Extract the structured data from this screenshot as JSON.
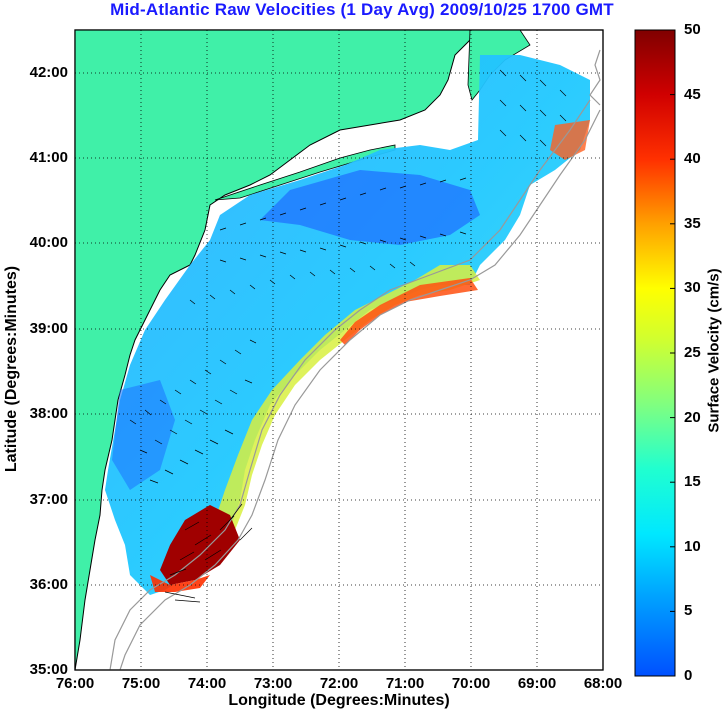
{
  "title": "Mid-Atlantic Raw Velocities (1 Day Avg) 2009/10/25 1700 GMT",
  "x_axis": {
    "label": "Longitude (Degrees:Minutes)",
    "ticks": [
      "76:00",
      "75:00",
      "74:00",
      "73:00",
      "72:00",
      "71:00",
      "70:00",
      "69:00",
      "68:00"
    ]
  },
  "y_axis": {
    "label": "Latitude (Degrees:Minutes)",
    "ticks": [
      "42:00",
      "41:00",
      "40:00",
      "39:00",
      "38:00",
      "37:00",
      "36:00",
      "35:00"
    ]
  },
  "colorbar": {
    "label": "Surface Velocity (cm/s)",
    "ticks": [
      "50",
      "45",
      "40",
      "35",
      "30",
      "25",
      "20",
      "15",
      "10",
      "5",
      "0"
    ],
    "range": [
      0,
      50
    ]
  },
  "colors": {
    "land": "#40f0a8",
    "title": "#1a1aff",
    "water_bg": "#ffffff",
    "bathymetry": "#999999",
    "grid": "#000000"
  }
}
